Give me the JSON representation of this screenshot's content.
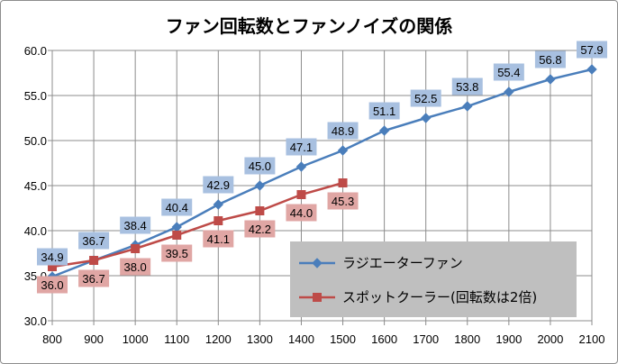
{
  "chart_data": {
    "type": "line",
    "title": "ファン回転数とファンノイズの関係",
    "xlabel": "",
    "ylabel": "",
    "ylim": [
      30.0,
      60.0
    ],
    "y_ticks": [
      "30.0",
      "35.0",
      "40.0",
      "45.0",
      "50.0",
      "55.0",
      "60.0"
    ],
    "x_ticks": [
      "800",
      "900",
      "1000",
      "1100",
      "1200",
      "1300",
      "1400",
      "1500",
      "1600",
      "1700",
      "1800",
      "1900",
      "2000",
      "2100"
    ],
    "grid": true,
    "legend_position": "bottom-right",
    "series": [
      {
        "name": "ラジエーターファン",
        "color": "#4a7ebb",
        "marker": "diamond",
        "label_bg": "#a8c0e0",
        "x": [
          800,
          900,
          1000,
          1100,
          1200,
          1300,
          1400,
          1500,
          1600,
          1700,
          1800,
          1900,
          2000,
          2100
        ],
        "values": [
          34.9,
          36.7,
          38.4,
          40.4,
          42.9,
          45.0,
          47.1,
          48.9,
          51.1,
          52.5,
          53.8,
          55.4,
          56.8,
          57.9
        ],
        "labels": [
          "34.9",
          "36.7",
          "38.4",
          "40.4",
          "42.9",
          "45.0",
          "47.1",
          "48.9",
          "51.1",
          "52.5",
          "53.8",
          "55.4",
          "56.8",
          "57.9"
        ]
      },
      {
        "name": "スポットクーラー(回転数は2倍)",
        "color": "#be4b48",
        "marker": "square",
        "label_bg": "#e0a6a4",
        "x": [
          800,
          900,
          1000,
          1100,
          1200,
          1300,
          1400,
          1500
        ],
        "values": [
          36.0,
          36.7,
          38.0,
          39.5,
          41.1,
          42.2,
          44.0,
          45.3
        ],
        "labels": [
          "36.0",
          "36.7",
          "38.0",
          "39.5",
          "41.1",
          "42.2",
          "44.0",
          "45.3"
        ]
      }
    ]
  }
}
